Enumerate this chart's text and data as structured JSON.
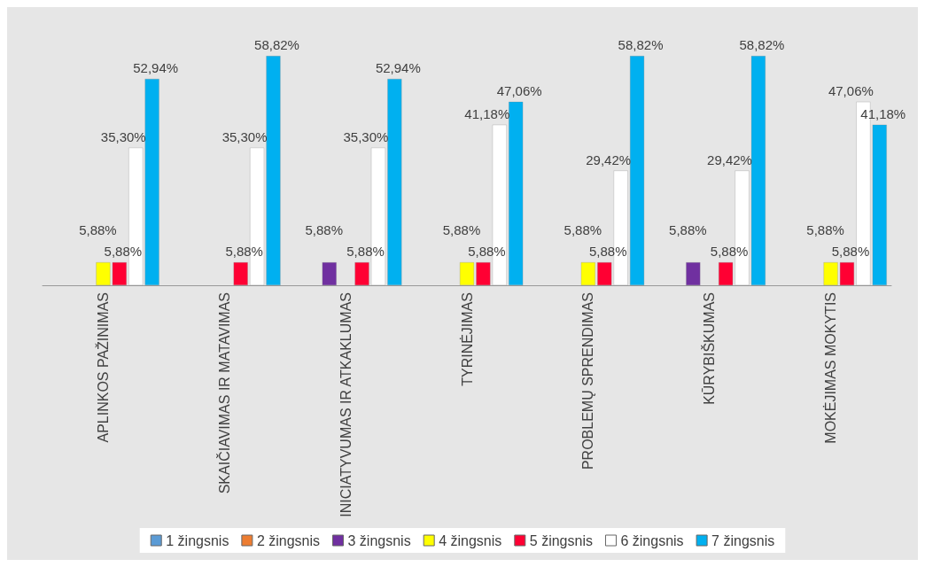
{
  "chart_data": {
    "type": "bar",
    "categories": [
      "APLINKOS PAŽINIMAS",
      "SKAIČIAVIMAS IR MATAVIMAS",
      "INICIATYVUMAS IR ATKAKLUMAS",
      "TYRINĖJIMAS",
      "PROBLEMŲ SPRENDIMAS",
      "KŪRYBIŠKUMAS",
      "MOKĖJIMAS MOKYTIS"
    ],
    "series": [
      {
        "name": "1 žingsnis",
        "color": "#5b9bd5",
        "values": [
          null,
          null,
          null,
          null,
          null,
          null,
          null
        ],
        "value_labels": [
          null,
          null,
          null,
          null,
          null,
          null,
          null
        ]
      },
      {
        "name": "2 žingsnis",
        "color": "#ed7d31",
        "values": [
          null,
          null,
          null,
          null,
          null,
          null,
          null
        ],
        "value_labels": [
          null,
          null,
          null,
          null,
          null,
          null,
          null
        ]
      },
      {
        "name": "3 žingsnis",
        "color": "#7030a0",
        "values": [
          null,
          null,
          5.88,
          null,
          null,
          5.88,
          null
        ],
        "value_labels": [
          null,
          null,
          "5,88%",
          null,
          null,
          "5,88%",
          null
        ]
      },
      {
        "name": "4 žingsnis",
        "color": "#ffff00",
        "values": [
          5.88,
          null,
          null,
          5.88,
          5.88,
          null,
          5.88
        ],
        "value_labels": [
          "5,88%",
          null,
          null,
          "5,88%",
          "5,88%",
          null,
          "5,88%"
        ]
      },
      {
        "name": "5 žingsnis",
        "color": "#ff0033",
        "values": [
          5.88,
          5.88,
          5.88,
          5.88,
          5.88,
          5.88,
          5.88
        ],
        "value_labels": [
          "5,88%",
          "5,88%",
          "5,88%",
          "5,88%",
          "5,88%",
          "5,88%",
          "5,88%"
        ]
      },
      {
        "name": "6 žingsnis",
        "color": "#ffffff",
        "values": [
          35.3,
          35.3,
          35.3,
          41.18,
          29.42,
          29.42,
          47.06
        ],
        "value_labels": [
          "35,30%",
          "35,30%",
          "35,30%",
          "41,18%",
          "29,42%",
          "29,42%",
          "47,06%"
        ]
      },
      {
        "name": "7 žingsnis",
        "color": "#00b0f0",
        "values": [
          52.94,
          58.82,
          52.94,
          47.06,
          58.82,
          58.82,
          41.18
        ],
        "value_labels": [
          "52,94%",
          "58,82%",
          "52,94%",
          "47,06%",
          "58,82%",
          "58,82%",
          "41,18%"
        ]
      }
    ],
    "legend": "bottom"
  }
}
